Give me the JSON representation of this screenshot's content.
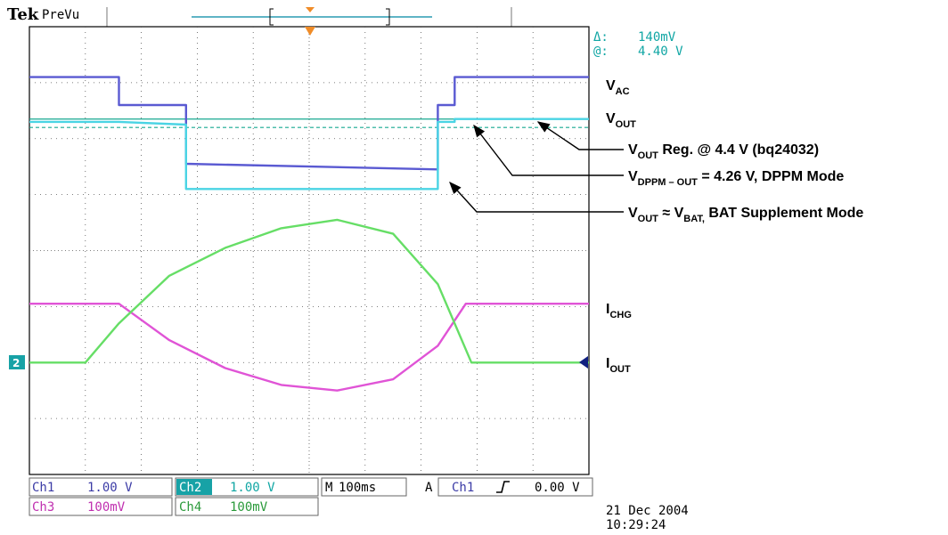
{
  "header": {
    "brand": "Tek",
    "mode": "PreVu"
  },
  "cursor_readout": {
    "delta_label": "Δ:",
    "delta_value": "140mV",
    "at_label": "@:",
    "at_value": "4.40 V"
  },
  "channels": {
    "ch1": {
      "label": "Ch1",
      "scale": "1.00 V",
      "color": "#5a5ad2"
    },
    "ch2": {
      "label": "Ch2",
      "scale": "1.00 V",
      "color": "#4ad4e4"
    },
    "ch3": {
      "label": "Ch3",
      "scale": "100mV",
      "color": "#e054d6"
    },
    "ch4": {
      "label": "Ch4",
      "scale": "100mV",
      "color": "#66de66"
    },
    "ground_marker": "2"
  },
  "timebase": {
    "label": "M",
    "value": "100ms"
  },
  "trigger": {
    "mode": "A",
    "source": "Ch1",
    "slope_icon": "rising-edge-icon",
    "level": "0.00 V"
  },
  "timestamp": {
    "date": "21 Dec 2004",
    "time": "10:29:24"
  },
  "annotations": {
    "vac": {
      "main": "V",
      "sub": "AC"
    },
    "vout": {
      "main": "V",
      "sub": "OUT"
    },
    "ichg": {
      "main": "I",
      "sub": "CHG"
    },
    "iout": {
      "main": "I",
      "sub": "OUT"
    },
    "vout_reg": {
      "v": "V",
      "sub": "OUT",
      "rest": " Reg. @ 4.4 V (bq24032)"
    },
    "vdppm": {
      "v": "V",
      "sub": "DPPM – OUT",
      "rest": " = 4.26 V, DPPM Mode"
    },
    "vbat": {
      "v": "V",
      "sub": "OUT",
      "approx": " ≈ V",
      "sub2": "BAT,",
      "rest": " BAT Supplement Mode"
    }
  },
  "chart_data": {
    "type": "line",
    "x_unit": "divisions",
    "xlim": [
      0,
      10
    ],
    "ylim": [
      -4,
      4
    ],
    "grid": true,
    "series": [
      {
        "channel": "Ch1",
        "color": "#5a5ad2",
        "x": [
          0,
          1.6,
          1.6,
          2.8,
          2.8,
          7.3,
          7.3,
          7.6,
          7.6,
          10
        ],
        "y": [
          3.1,
          3.1,
          2.6,
          2.6,
          1.55,
          1.45,
          2.6,
          2.6,
          3.1,
          3.1
        ]
      },
      {
        "channel": "Ch2",
        "color": "#4ad4e4",
        "x": [
          0,
          1.6,
          1.6,
          2.8,
          2.8,
          7.3,
          7.3,
          7.6,
          7.6,
          10
        ],
        "y": [
          2.3,
          2.3,
          2.3,
          2.25,
          1.1,
          1.1,
          2.3,
          2.3,
          2.35,
          2.35
        ]
      },
      {
        "channel": "Ch3",
        "color": "#e054d6",
        "x": [
          0,
          1.6,
          2.5,
          3.5,
          4.5,
          5.5,
          6.5,
          7.3,
          7.8,
          10
        ],
        "y": [
          -0.95,
          -0.95,
          -1.6,
          -2.1,
          -2.4,
          -2.5,
          -2.3,
          -1.7,
          -0.95,
          -0.95
        ]
      },
      {
        "channel": "Ch4",
        "color": "#66de66",
        "x": [
          0,
          1.0,
          1.6,
          2.5,
          3.5,
          4.5,
          5.5,
          6.5,
          7.3,
          7.9,
          10
        ],
        "y": [
          -2.0,
          -2.0,
          -1.3,
          -0.45,
          0.05,
          0.4,
          0.55,
          0.3,
          -0.6,
          -2.0,
          -2.0
        ]
      }
    ],
    "reference_lines": [
      {
        "y": 2.35,
        "style": "solid",
        "color": "#16a890"
      },
      {
        "y": 2.2,
        "style": "dashed",
        "color": "#16a890"
      }
    ]
  }
}
